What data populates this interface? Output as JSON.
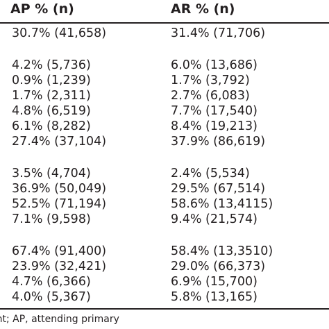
{
  "table": {
    "headers": [
      "AP % (n)",
      "AR % (n)"
    ],
    "rows": [
      [
        "30.7% (41,658)",
        "31.4% (71,706)"
      ],
      [
        "4.2% (5,736)",
        "6.0% (13,686)"
      ],
      [
        "0.9% (1,239)",
        "1.7% (3,792)"
      ],
      [
        "1.7% (2,311)",
        "2.7% (6,083)"
      ],
      [
        "4.8% (6,519)",
        "7.7% (17,540)"
      ],
      [
        "6.1% (8,282)",
        "8.4% (19,213)"
      ],
      [
        "27.4% (37,104)",
        "37.9% (86,619)"
      ],
      [
        "3.5% (4,704)",
        "2.4% (5,534)"
      ],
      [
        "36.9% (50,049)",
        "29.5% (67,514)"
      ],
      [
        "52.5% (71,194)",
        "58.6% (13,4115)"
      ],
      [
        "7.1% (9,598)",
        "9.4% (21,574)"
      ],
      [
        "67.4% (91,400)",
        "58.4% (13,3510)"
      ],
      [
        "23.9% (32,421)",
        "29.0% (66,373)"
      ],
      [
        "4.7% (6,366)",
        "6.9% (15,700)"
      ],
      [
        "4.0% (5,367)",
        "5.8% (13,165)"
      ]
    ]
  },
  "footnote": "ent; AP, attending primary"
}
